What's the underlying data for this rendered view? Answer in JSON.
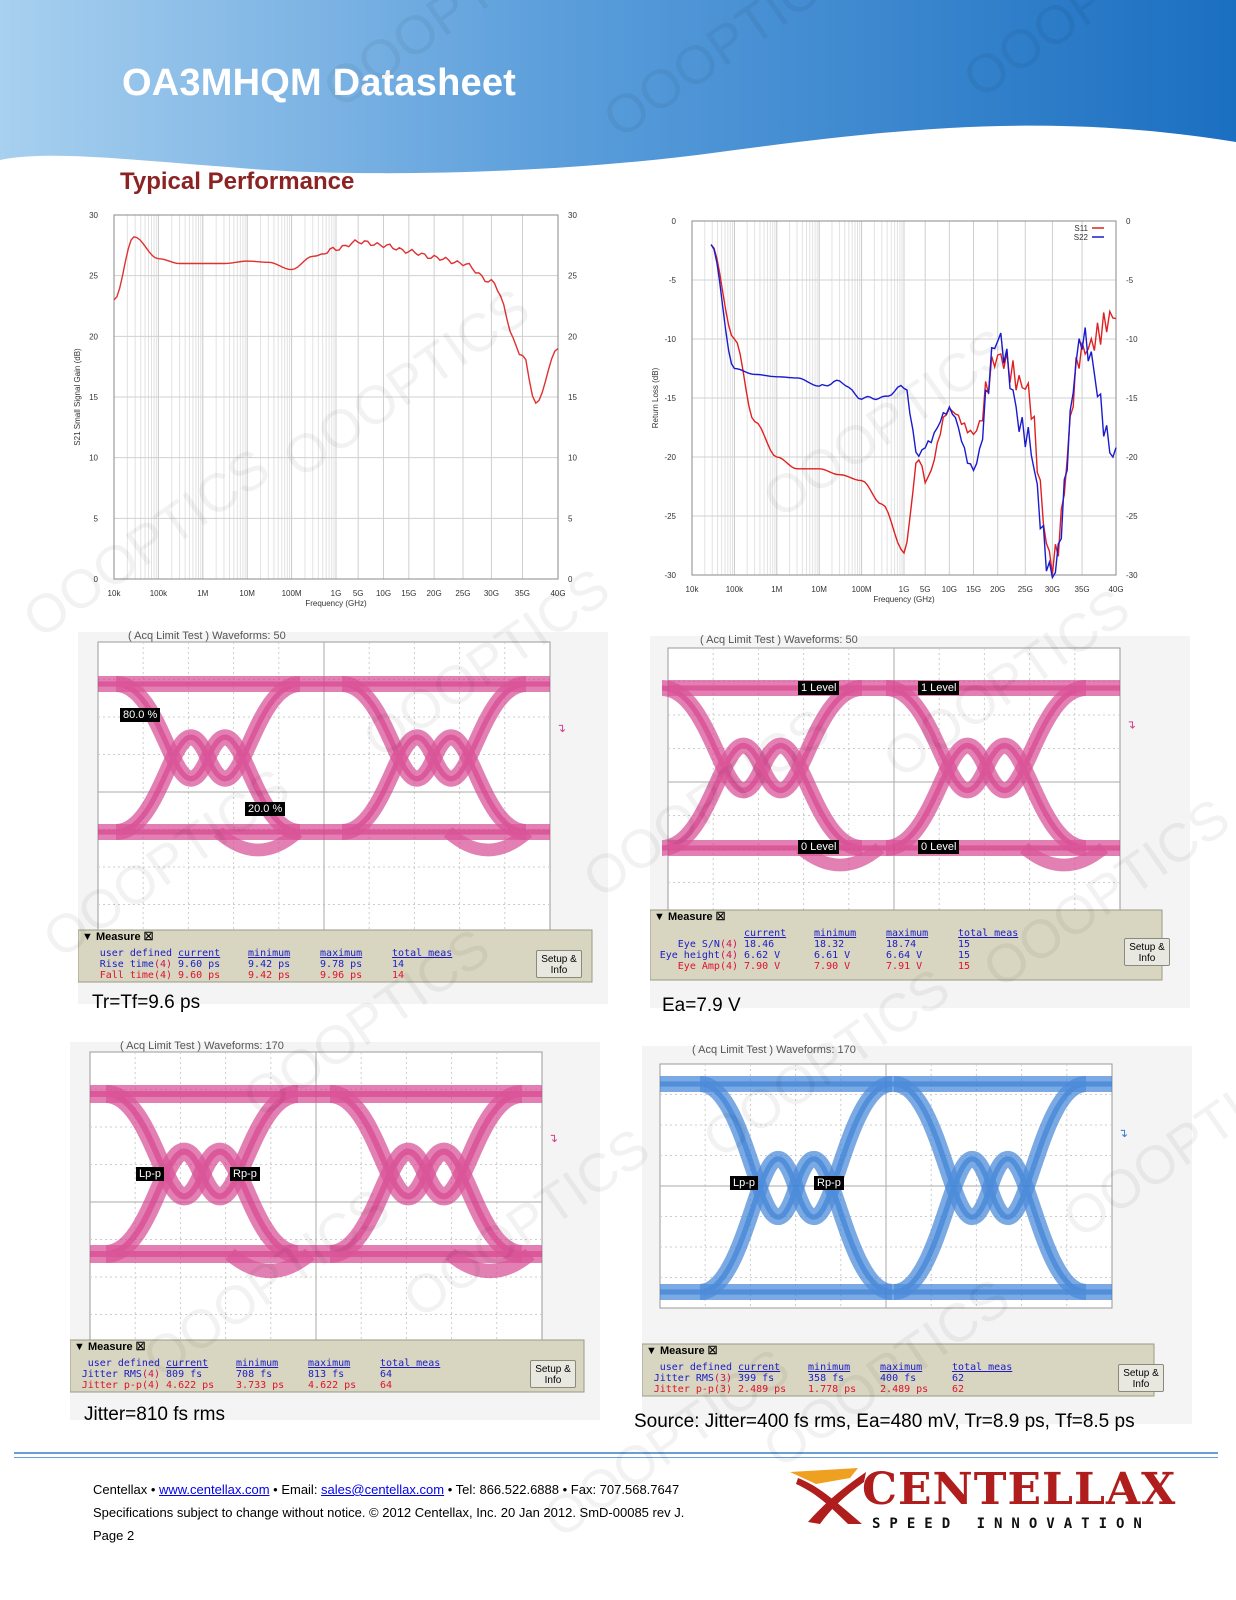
{
  "header": {
    "title": "OA3MHQM Datasheet"
  },
  "section": {
    "heading": "Typical Performance"
  },
  "watermark": {
    "text": "OOOPTICS"
  },
  "charts": {
    "gain": {
      "ylabel": "S21 Small Signal Gain (dB)",
      "xlabel": "Frequency (GHz)",
      "yticks": [
        "0",
        "5",
        "10",
        "15",
        "20",
        "25",
        "30"
      ],
      "xticks": [
        "10k",
        "100k",
        "1M",
        "10M",
        "100M",
        "1G",
        "5G",
        "10G",
        "15G",
        "20G",
        "25G",
        "30G",
        "35G",
        "40G"
      ]
    },
    "return_loss": {
      "ylabel": "Return Loss (dB)",
      "xlabel": "Frequency (GHz)",
      "yticks": [
        "0",
        "-5",
        "-10",
        "-15",
        "-20",
        "-25",
        "-30"
      ],
      "xticks": [
        "10k",
        "100k",
        "1M",
        "10M",
        "100M",
        "1G",
        "5G",
        "10G",
        "15G",
        "20G",
        "25G",
        "30G",
        "35G",
        "40G"
      ],
      "legend": [
        {
          "name": "S11",
          "color": "#e02020"
        },
        {
          "name": "S22",
          "color": "#1a1acf"
        }
      ]
    }
  },
  "chart_data": [
    {
      "type": "line",
      "ylabel": "S21 Small Signal Gain (dB)",
      "xlabel": "Frequency (GHz)",
      "ylim": [
        0,
        30
      ],
      "x": [
        "10k",
        "30k",
        "100k",
        "300k",
        "1M",
        "3M",
        "10M",
        "30M",
        "100M",
        "300M",
        "1G",
        "5G",
        "10G",
        "15G",
        "20G",
        "25G",
        "30G",
        "35G",
        "37G",
        "40G"
      ],
      "series": [
        {
          "values": [
            23.0,
            28.2,
            26.4,
            26.0,
            26.0,
            26.0,
            26.2,
            26.1,
            25.5,
            26.6,
            27.2,
            27.8,
            27.5,
            27.0,
            26.5,
            26.0,
            24.5,
            18.5,
            14.5,
            19.0
          ]
        }
      ]
    },
    {
      "type": "line",
      "ylabel": "Return Loss (dB)",
      "xlabel": "Frequency (GHz)",
      "ylim": [
        -30,
        0
      ],
      "x": [
        "30k",
        "100k",
        "300k",
        "1M",
        "3M",
        "10M",
        "30M",
        "100M",
        "300M",
        "1G",
        "3G",
        "5G",
        "10G",
        "15G",
        "20G",
        "25G",
        "30G",
        "35G",
        "40G"
      ],
      "series": [
        {
          "name": "S11",
          "values": [
            -2.0,
            -10.0,
            -17.0,
            -20.0,
            -21.0,
            -21.0,
            -21.5,
            -22.0,
            -24.0,
            -28.0,
            -20.0,
            -22.0,
            -16.0,
            -18.0,
            -11.5,
            -14.0,
            -29.0,
            -11.0,
            -8.0
          ]
        },
        {
          "name": "S22",
          "values": [
            -2.0,
            -12.5,
            -13.0,
            -13.2,
            -13.3,
            -14.0,
            -13.6,
            -15.0,
            -15.0,
            -14.0,
            -20.0,
            -19.0,
            -16.0,
            -21.0,
            -10.0,
            -18.0,
            -30.0,
            -10.0,
            -20.0
          ]
        }
      ]
    }
  ],
  "scopes": [
    {
      "acq": "( Acq Limit Test )  Waveforms: 50",
      "markers": [
        "80.0 %",
        "20.0 %"
      ],
      "measure_title": "Measure",
      "headers": [
        "current",
        "minimum",
        "maximum",
        "total meas"
      ],
      "user_defined": "user defined",
      "rows": [
        {
          "label": "Rise time",
          "ch": "(4)",
          "current": "9.60 ps",
          "minimum": "9.42 ps",
          "maximum": "9.78 ps",
          "total": "14",
          "red": false
        },
        {
          "label": "Fall time",
          "ch": "(4)",
          "current": "9.60 ps",
          "minimum": "9.42 ps",
          "maximum": "9.96 ps",
          "total": "14",
          "red": true
        }
      ],
      "setup": "Setup & Info",
      "caption": "Tr=Tf=9.6 ps"
    },
    {
      "acq": "( Acq Limit Test )  Waveforms: 50",
      "markers": [
        "1 Level",
        "1 Level",
        "0 Level",
        "0 Level"
      ],
      "measure_title": "Measure",
      "headers": [
        "current",
        "minimum",
        "maximum",
        "total meas"
      ],
      "rows": [
        {
          "label": "Eye S/N",
          "ch": "(4)",
          "current": "18.46",
          "minimum": "18.32",
          "maximum": "18.74",
          "total": "15",
          "red": false
        },
        {
          "label": "Eye height",
          "ch": "(4)",
          "current": "6.62 V",
          "minimum": "6.61 V",
          "maximum": "6.64 V",
          "total": "15",
          "red": false
        },
        {
          "label": "Eye Amp",
          "ch": "(4)",
          "current": "7.90 V",
          "minimum": "7.90 V",
          "maximum": "7.91 V",
          "total": "15",
          "red": true
        }
      ],
      "setup": "Setup & Info",
      "caption": "Ea=7.9 V"
    },
    {
      "acq": "( Acq Limit Test )  Waveforms: 170",
      "markers": [
        "Lp-p",
        "Rp-p"
      ],
      "measure_title": "Measure",
      "headers": [
        "current",
        "minimum",
        "maximum",
        "total meas"
      ],
      "user_defined": "user defined",
      "rows": [
        {
          "label": "Jitter RMS",
          "ch": "(4)",
          "current": "809 fs",
          "minimum": "708 fs",
          "maximum": "813 fs",
          "total": "64",
          "red": false
        },
        {
          "label": "Jitter p-p",
          "ch": "(4)",
          "current": "4.622 ps",
          "minimum": "3.733 ps",
          "maximum": "4.622 ps",
          "total": "64",
          "red": true
        }
      ],
      "setup": "Setup & Info",
      "caption": "Jitter=810 fs rms"
    },
    {
      "acq": "( Acq Limit Test )  Waveforms: 170",
      "markers": [
        "Lp-p",
        "Rp-p"
      ],
      "measure_title": "Measure",
      "headers": [
        "current",
        "minimum",
        "maximum",
        "total meas"
      ],
      "user_defined": "user defined",
      "rows": [
        {
          "label": "Jitter RMS",
          "ch": "(3)",
          "current": "399 fs",
          "minimum": "358 fs",
          "maximum": "400 fs",
          "total": "62",
          "red": false
        },
        {
          "label": "Jitter p-p",
          "ch": "(3)",
          "current": "2.489 ps",
          "minimum": "1.778 ps",
          "maximum": "2.489 ps",
          "total": "62",
          "red": true
        }
      ],
      "setup": "Setup & Info",
      "caption": "Source: Jitter=400 fs rms, Ea=480 mV, Tr=8.9 ps, Tf=8.5 ps"
    }
  ],
  "footer": {
    "company": "Centellax",
    "sep": " • ",
    "website": "www.centellax.com",
    "email_label": "Email: ",
    "email": "sales@centellax.com",
    "tel": "Tel: 866.522.6888",
    "fax": "Fax: 707.568.7647",
    "disclaimer": "Specifications subject to change without notice. © 2012 Centellax, Inc. 20 Jan 2012. SmD-00085 rev J.",
    "page": "Page 2"
  },
  "logo": {
    "name": "CENTELLAX",
    "tagline": "SPEED INNOVATION",
    "color": "#b01d1d",
    "accent": "#f0a020"
  },
  "colors": {
    "header_dark": "#1f72c0",
    "header_light": "#a9d0ee",
    "eye_pink": "#d6428e",
    "eye_blue": "#3a7fd6",
    "heading": "#8b2323"
  }
}
